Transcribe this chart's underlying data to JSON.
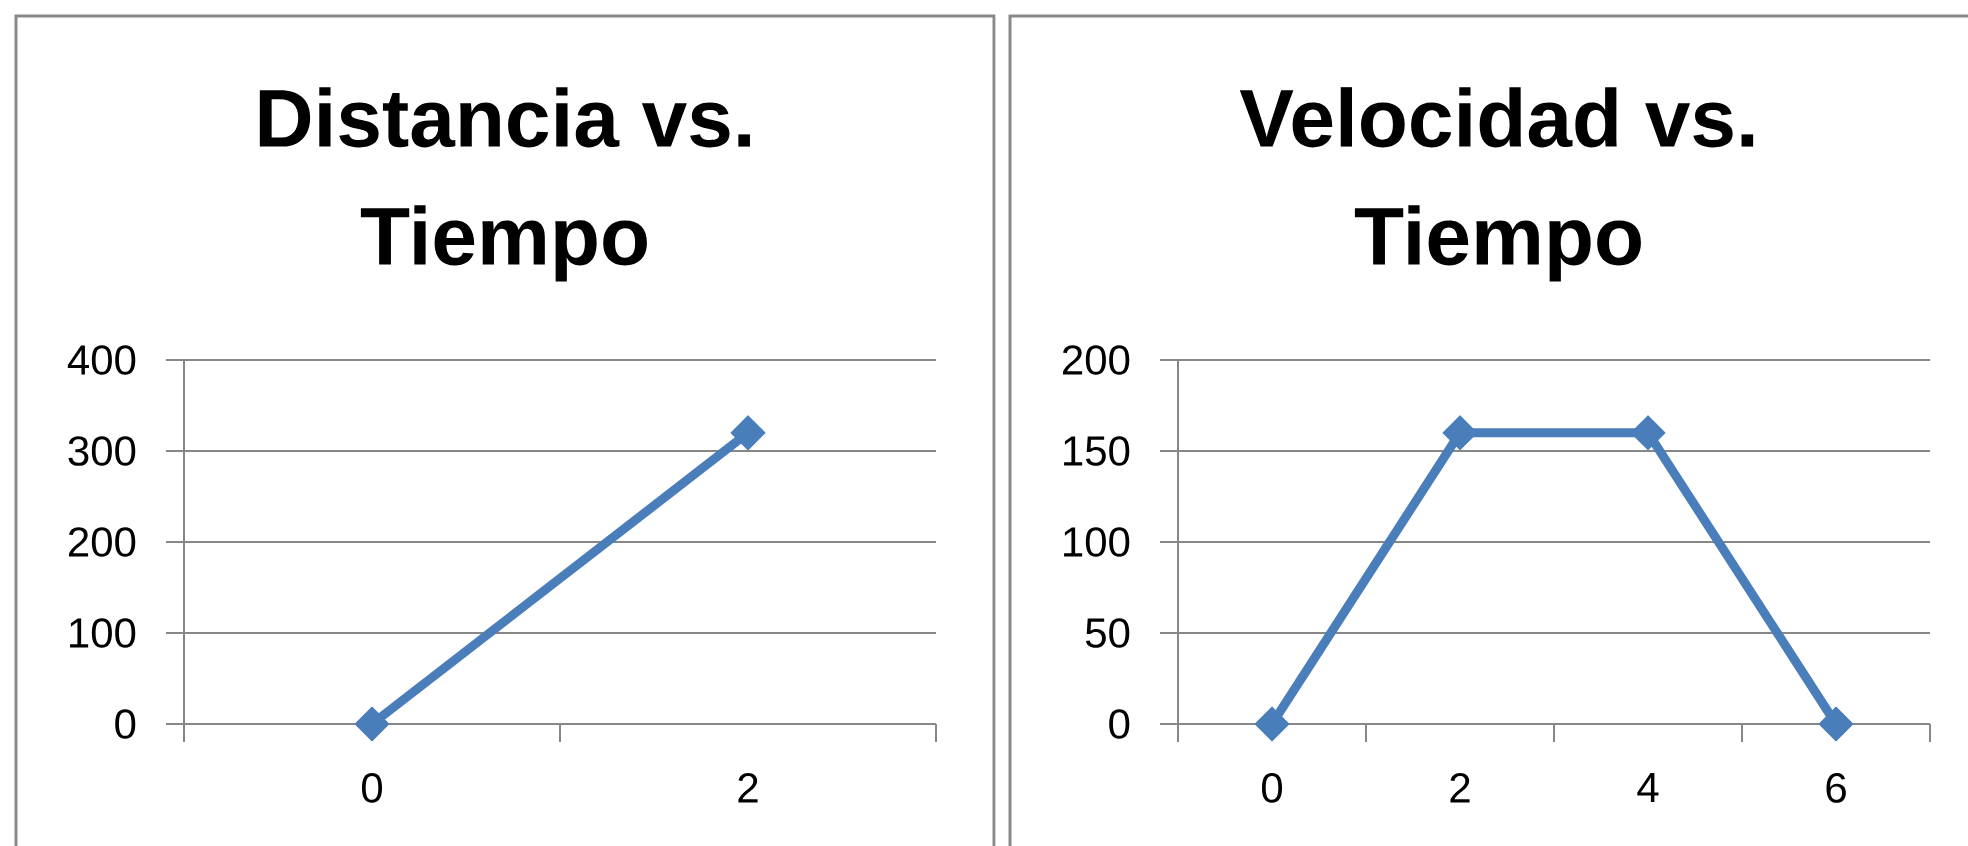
{
  "chart_data": [
    {
      "type": "line",
      "title": "Distancia vs. Tiempo",
      "categories": [
        "0",
        "2"
      ],
      "series": [
        {
          "color": "#4a7ebb",
          "values": [
            0,
            320
          ]
        }
      ],
      "ylim": [
        0,
        400
      ],
      "yticks": [
        0,
        100,
        200,
        300,
        400
      ],
      "grid": "y",
      "marker": "diamond",
      "line_style": "solid"
    },
    {
      "type": "line",
      "title": "Velocidad vs. Tiempo",
      "categories": [
        "0",
        "2",
        "4",
        "6"
      ],
      "series": [
        {
          "color": "#4a7ebb",
          "values": [
            0,
            160,
            160,
            0
          ]
        }
      ],
      "ylim": [
        0,
        200
      ],
      "yticks": [
        0,
        50,
        100,
        150,
        200
      ],
      "grid": "y",
      "marker": "diamond",
      "line_style": "solid"
    }
  ]
}
